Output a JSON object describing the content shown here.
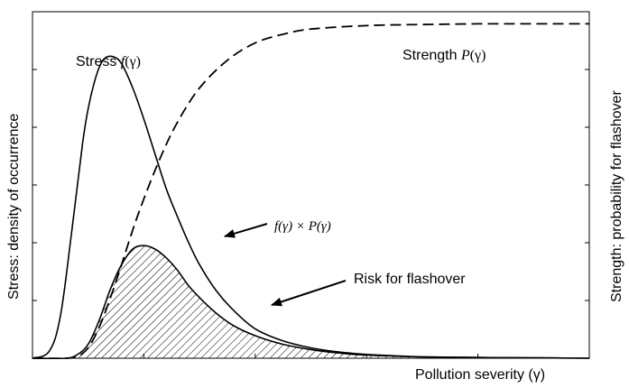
{
  "chart_data": {
    "type": "line",
    "title": "",
    "xlabel": "Pollution severity (γ)",
    "ylabel_left": "Stress: density of occurrence",
    "ylabel_right": "Strength: probability for flashover",
    "xlim": [
      0,
      10
    ],
    "ylim": [
      0,
      1.0
    ],
    "grid": false,
    "tick_labels": false,
    "series": [
      {
        "name": "Stress f(γ)",
        "style": "solid",
        "x": [
          0,
          0.3,
          0.5,
          0.7,
          0.9,
          1.0,
          1.1,
          1.2,
          1.3,
          1.45,
          1.6,
          1.8,
          2.0,
          2.2,
          2.4,
          2.6,
          2.8,
          3.0,
          3.3,
          3.6,
          4.0,
          4.5,
          5.0,
          5.5,
          6.0,
          6.5,
          7.0,
          8.0,
          9.0,
          10.0
        ],
        "y": [
          0.0,
          0.02,
          0.12,
          0.36,
          0.62,
          0.72,
          0.79,
          0.84,
          0.866,
          0.87,
          0.85,
          0.78,
          0.69,
          0.59,
          0.49,
          0.41,
          0.335,
          0.27,
          0.195,
          0.14,
          0.085,
          0.05,
          0.03,
          0.018,
          0.011,
          0.007,
          0.004,
          0.002,
          0.001,
          0.0
        ]
      },
      {
        "name": "Strength P(γ)",
        "style": "dashed",
        "x": [
          0,
          0.6,
          0.8,
          1.0,
          1.2,
          1.4,
          1.6,
          1.8,
          2.0,
          2.3,
          2.6,
          3.0,
          3.5,
          4.0,
          4.5,
          5.0,
          6.0,
          7.0,
          8.0,
          9.0,
          10.0
        ],
        "y": [
          0.0,
          0.0,
          0.005,
          0.03,
          0.09,
          0.175,
          0.27,
          0.37,
          0.46,
          0.58,
          0.68,
          0.78,
          0.86,
          0.91,
          0.935,
          0.95,
          0.96,
          0.963,
          0.965,
          0.965,
          0.965
        ]
      },
      {
        "name": "f(γ) × P(γ)",
        "style": "solid-hatched",
        "x": [
          0,
          0.6,
          0.8,
          1.0,
          1.2,
          1.4,
          1.6,
          1.8,
          2.0,
          2.2,
          2.4,
          2.6,
          2.8,
          3.0,
          3.3,
          3.6,
          4.0,
          4.5,
          5.0,
          5.5,
          6.0,
          6.5,
          7.0,
          8.0,
          9.0,
          10.0
        ],
        "y": [
          0.0,
          0.0,
          0.01,
          0.04,
          0.11,
          0.2,
          0.27,
          0.315,
          0.325,
          0.315,
          0.29,
          0.255,
          0.21,
          0.175,
          0.13,
          0.095,
          0.065,
          0.04,
          0.025,
          0.015,
          0.009,
          0.006,
          0.004,
          0.002,
          0.001,
          0.0
        ]
      }
    ],
    "annotations": [
      {
        "id": "stress",
        "text_main": "Stress ",
        "text_func": "f",
        "text_arg": "(γ)"
      },
      {
        "id": "strength",
        "text_main": "Strength ",
        "text_func": "P",
        "text_arg": "(γ)"
      },
      {
        "id": "product",
        "text": "f(γ) × P(γ)",
        "arrow": true
      },
      {
        "id": "risk",
        "text": "Risk for flashover",
        "arrow": true
      }
    ]
  }
}
